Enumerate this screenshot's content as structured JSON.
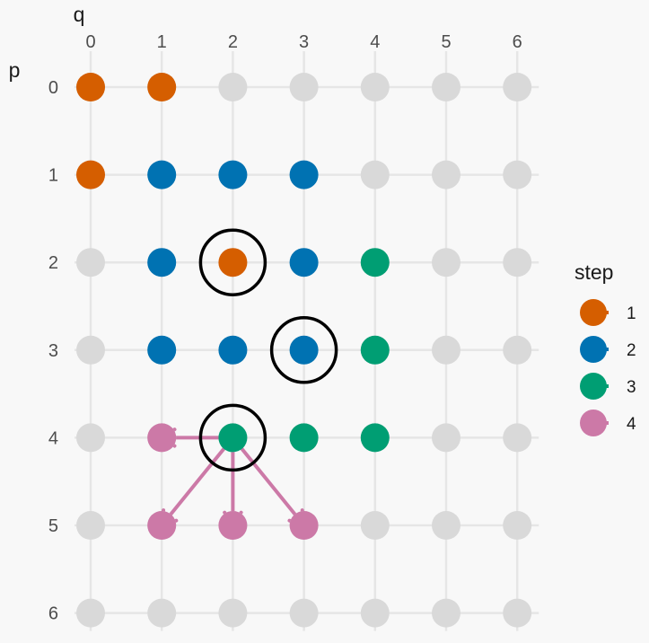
{
  "chart_data": {
    "type": "scatter",
    "xlabel": "q",
    "ylabel": "p",
    "x_ticks": [
      "0",
      "1",
      "2",
      "3",
      "4",
      "5",
      "6"
    ],
    "y_ticks": [
      "0",
      "1",
      "2",
      "3",
      "4",
      "5",
      "6"
    ],
    "xlim": [
      0,
      6
    ],
    "ylim": [
      0,
      6
    ],
    "y_reversed": true,
    "x_axis_position": "top",
    "grid": true,
    "background_point_color": "#d9d9d9",
    "circle_color": "#000000",
    "arrow_color": "#cc79a7",
    "legend": {
      "title": "step",
      "position": "right",
      "entries": [
        {
          "label": "1",
          "color": "#d55e00"
        },
        {
          "label": "2",
          "color": "#0072b2"
        },
        {
          "label": "3",
          "color": "#009e73"
        },
        {
          "label": "4",
          "color": "#cc79a7"
        }
      ]
    },
    "points": [
      {
        "q": 0,
        "p": 0,
        "step": "1"
      },
      {
        "q": 1,
        "p": 0,
        "step": "1"
      },
      {
        "q": 0,
        "p": 1,
        "step": "1"
      },
      {
        "q": 2,
        "p": 2,
        "step": "1"
      },
      {
        "q": 1,
        "p": 1,
        "step": "2"
      },
      {
        "q": 2,
        "p": 1,
        "step": "2"
      },
      {
        "q": 3,
        "p": 1,
        "step": "2"
      },
      {
        "q": 1,
        "p": 2,
        "step": "2"
      },
      {
        "q": 3,
        "p": 2,
        "step": "2"
      },
      {
        "q": 1,
        "p": 3,
        "step": "2"
      },
      {
        "q": 2,
        "p": 3,
        "step": "2"
      },
      {
        "q": 3,
        "p": 3,
        "step": "2"
      },
      {
        "q": 4,
        "p": 2,
        "step": "3"
      },
      {
        "q": 4,
        "p": 3,
        "step": "3"
      },
      {
        "q": 2,
        "p": 4,
        "step": "3"
      },
      {
        "q": 3,
        "p": 4,
        "step": "3"
      },
      {
        "q": 4,
        "p": 4,
        "step": "3"
      },
      {
        "q": 1,
        "p": 4,
        "step": "4"
      },
      {
        "q": 1,
        "p": 5,
        "step": "4"
      },
      {
        "q": 2,
        "p": 5,
        "step": "4"
      },
      {
        "q": 3,
        "p": 5,
        "step": "4"
      }
    ],
    "highlight_circles": [
      {
        "q": 2,
        "p": 2
      },
      {
        "q": 3,
        "p": 3
      },
      {
        "q": 2,
        "p": 4
      }
    ],
    "arrows": [
      {
        "from": {
          "q": 2,
          "p": 4
        },
        "to": {
          "q": 1,
          "p": 4
        }
      },
      {
        "from": {
          "q": 2,
          "p": 4
        },
        "to": {
          "q": 1,
          "p": 5
        }
      },
      {
        "from": {
          "q": 2,
          "p": 4
        },
        "to": {
          "q": 2,
          "p": 5
        }
      },
      {
        "from": {
          "q": 2,
          "p": 4
        },
        "to": {
          "q": 3,
          "p": 5
        }
      }
    ]
  }
}
